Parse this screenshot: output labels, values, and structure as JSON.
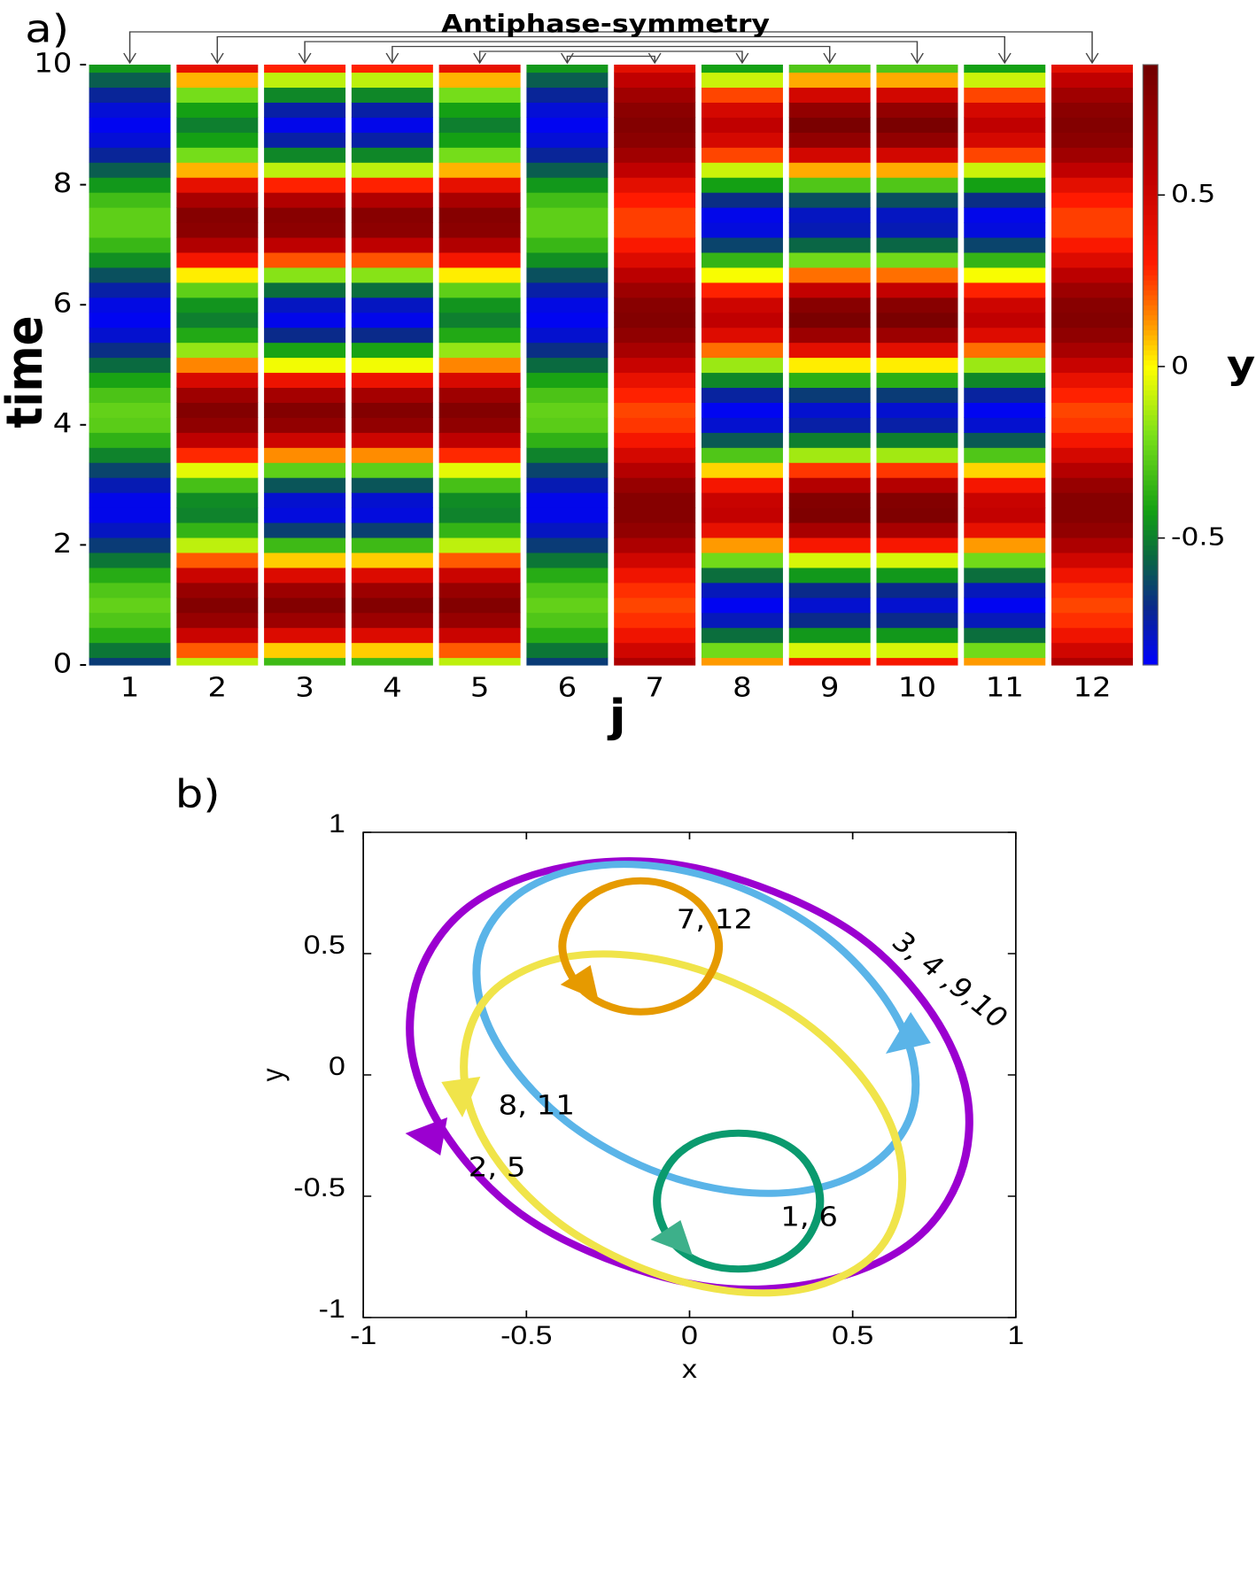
{
  "chart_data": [
    {
      "type": "heatmap",
      "panel": "a)",
      "title": "Antiphase-symmetry",
      "xlabel": "j",
      "ylabel": "time",
      "colorbar_label": "y",
      "categories": [
        1,
        2,
        3,
        4,
        5,
        6,
        7,
        8,
        9,
        10,
        11,
        12
      ],
      "times": [
        0,
        0.25,
        0.5,
        0.75,
        1,
        1.25,
        1.5,
        1.75,
        2,
        2.25,
        2.5,
        2.75,
        3,
        3.25,
        3.5,
        3.75,
        4,
        4.25,
        4.5,
        4.75,
        5,
        5.25,
        5.5,
        5.75,
        6,
        6.25,
        6.5,
        6.75,
        7,
        7.25,
        7.5,
        7.75,
        8,
        8.25,
        8.5,
        8.75,
        9,
        9.25,
        9.5,
        9.75,
        10
      ],
      "values": [
        [
          -0.66,
          -0.52,
          -0.38,
          -0.29,
          -0.25,
          -0.29,
          -0.38,
          -0.52,
          -0.66,
          -0.78,
          -0.84,
          -0.84,
          -0.76,
          -0.64,
          -0.49,
          -0.36,
          -0.27,
          -0.25,
          -0.3,
          -0.41,
          -0.55,
          -0.69,
          -0.8,
          -0.85,
          -0.83,
          -0.74,
          -0.61,
          -0.46,
          -0.34,
          -0.26,
          -0.26,
          -0.32,
          -0.44,
          -0.58,
          -0.72,
          -0.81,
          -0.85,
          -0.81,
          -0.72,
          -0.58,
          -0.44
        ],
        [
          -0.1,
          0.21,
          0.51,
          0.72,
          0.8,
          0.72,
          0.51,
          0.21,
          -0.1,
          -0.35,
          -0.49,
          -0.47,
          -0.31,
          -0.04,
          0.28,
          0.56,
          0.75,
          0.8,
          0.69,
          0.46,
          0.15,
          -0.16,
          -0.39,
          -0.5,
          -0.45,
          -0.26,
          0.02,
          0.34,
          0.61,
          0.77,
          0.79,
          0.65,
          0.4,
          0.09,
          -0.21,
          -0.42,
          -0.5,
          -0.42,
          -0.21,
          0.09,
          0.4
        ],
        [
          -0.33,
          0.06,
          0.44,
          0.7,
          0.8,
          0.7,
          0.44,
          0.06,
          -0.33,
          -0.65,
          -0.82,
          -0.8,
          -0.6,
          -0.26,
          0.14,
          0.5,
          0.74,
          0.8,
          0.66,
          0.37,
          -0.02,
          -0.41,
          -0.7,
          -0.84,
          -0.78,
          -0.54,
          -0.18,
          0.22,
          0.56,
          0.76,
          0.78,
          0.61,
          0.29,
          -0.1,
          -0.48,
          -0.74,
          -0.84,
          -0.74,
          -0.48,
          -0.1,
          0.29
        ],
        [
          -0.33,
          0.06,
          0.44,
          0.7,
          0.8,
          0.7,
          0.44,
          0.06,
          -0.33,
          -0.65,
          -0.82,
          -0.8,
          -0.6,
          -0.26,
          0.14,
          0.5,
          0.74,
          0.8,
          0.66,
          0.37,
          -0.02,
          -0.41,
          -0.7,
          -0.84,
          -0.78,
          -0.54,
          -0.18,
          0.22,
          0.56,
          0.76,
          0.78,
          0.61,
          0.29,
          -0.1,
          -0.48,
          -0.74,
          -0.84,
          -0.74,
          -0.48,
          -0.1,
          0.29
        ],
        [
          -0.1,
          0.21,
          0.51,
          0.72,
          0.8,
          0.72,
          0.51,
          0.21,
          -0.1,
          -0.35,
          -0.49,
          -0.47,
          -0.31,
          -0.04,
          0.28,
          0.56,
          0.75,
          0.8,
          0.69,
          0.46,
          0.15,
          -0.16,
          -0.39,
          -0.5,
          -0.45,
          -0.26,
          0.02,
          0.34,
          0.61,
          0.77,
          0.79,
          0.65,
          0.4,
          0.09,
          -0.21,
          -0.42,
          -0.5,
          -0.42,
          -0.21,
          0.09,
          0.4
        ],
        [
          -0.66,
          -0.52,
          -0.38,
          -0.29,
          -0.25,
          -0.29,
          -0.38,
          -0.52,
          -0.66,
          -0.78,
          -0.84,
          -0.84,
          -0.76,
          -0.64,
          -0.49,
          -0.36,
          -0.27,
          -0.25,
          -0.3,
          -0.41,
          -0.55,
          -0.69,
          -0.8,
          -0.85,
          -0.83,
          -0.74,
          -0.61,
          -0.46,
          -0.34,
          -0.26,
          -0.26,
          -0.32,
          -0.44,
          -0.58,
          -0.72,
          -0.81,
          -0.85,
          -0.81,
          -0.72,
          -0.58,
          -0.44
        ],
        [
          0.63,
          0.49,
          0.36,
          0.27,
          0.24,
          0.27,
          0.36,
          0.49,
          0.63,
          0.74,
          0.79,
          0.79,
          0.72,
          0.6,
          0.47,
          0.34,
          0.26,
          0.24,
          0.29,
          0.39,
          0.52,
          0.65,
          0.75,
          0.8,
          0.78,
          0.7,
          0.57,
          0.44,
          0.32,
          0.25,
          0.25,
          0.3,
          0.41,
          0.55,
          0.68,
          0.77,
          0.8,
          0.77,
          0.68,
          0.55,
          0.41
        ],
        [
          0.12,
          -0.22,
          -0.54,
          -0.77,
          -0.85,
          -0.77,
          -0.54,
          -0.22,
          0.12,
          0.39,
          0.54,
          0.52,
          0.34,
          0.05,
          -0.29,
          -0.59,
          -0.8,
          -0.85,
          -0.73,
          -0.48,
          -0.15,
          0.18,
          0.43,
          0.55,
          0.5,
          0.29,
          -0.01,
          -0.35,
          -0.64,
          -0.82,
          -0.84,
          -0.69,
          -0.42,
          -0.08,
          0.24,
          0.47,
          0.55,
          0.47,
          0.24,
          -0.08,
          -0.42
        ],
        [
          0.33,
          -0.06,
          -0.44,
          -0.7,
          -0.8,
          -0.7,
          -0.44,
          -0.06,
          0.33,
          0.65,
          0.82,
          0.8,
          0.6,
          0.26,
          -0.14,
          -0.5,
          -0.74,
          -0.8,
          -0.66,
          -0.37,
          0.02,
          0.41,
          0.7,
          0.84,
          0.78,
          0.54,
          0.18,
          -0.22,
          -0.56,
          -0.76,
          -0.78,
          -0.61,
          -0.29,
          0.1,
          0.48,
          0.74,
          0.84,
          0.74,
          0.48,
          0.1,
          -0.29
        ],
        [
          0.33,
          -0.06,
          -0.44,
          -0.7,
          -0.8,
          -0.7,
          -0.44,
          -0.06,
          0.33,
          0.65,
          0.82,
          0.8,
          0.6,
          0.26,
          -0.14,
          -0.5,
          -0.74,
          -0.8,
          -0.66,
          -0.37,
          0.02,
          0.41,
          0.7,
          0.84,
          0.78,
          0.54,
          0.18,
          -0.22,
          -0.56,
          -0.76,
          -0.78,
          -0.61,
          -0.29,
          0.1,
          0.48,
          0.74,
          0.84,
          0.74,
          0.48,
          0.1,
          -0.29
        ],
        [
          0.12,
          -0.22,
          -0.54,
          -0.77,
          -0.85,
          -0.77,
          -0.54,
          -0.22,
          0.12,
          0.39,
          0.54,
          0.52,
          0.34,
          0.05,
          -0.29,
          -0.59,
          -0.8,
          -0.85,
          -0.73,
          -0.48,
          -0.15,
          0.18,
          0.43,
          0.55,
          0.5,
          0.29,
          -0.01,
          -0.35,
          -0.64,
          -0.82,
          -0.84,
          -0.69,
          -0.42,
          -0.08,
          0.24,
          0.47,
          0.55,
          0.47,
          0.24,
          -0.08,
          -0.42
        ],
        [
          0.63,
          0.49,
          0.36,
          0.27,
          0.24,
          0.27,
          0.36,
          0.49,
          0.63,
          0.74,
          0.79,
          0.79,
          0.72,
          0.6,
          0.47,
          0.34,
          0.26,
          0.24,
          0.29,
          0.39,
          0.52,
          0.65,
          0.75,
          0.8,
          0.78,
          0.7,
          0.57,
          0.44,
          0.32,
          0.25,
          0.25,
          0.3,
          0.41,
          0.55,
          0.68,
          0.77,
          0.8,
          0.77,
          0.68,
          0.55,
          0.41
        ]
      ],
      "ylim": [
        0,
        10
      ],
      "yticks": [
        0,
        2,
        4,
        6,
        8,
        10
      ],
      "clim": [
        -0.87,
        0.88
      ],
      "cticks": [
        -0.5,
        0,
        0.5
      ],
      "colormap": [
        {
          "value": -0.87,
          "color": "#0000ff"
        },
        {
          "value": -0.7,
          "color": "#0a2a8a"
        },
        {
          "value": -0.55,
          "color": "#0a6a40"
        },
        {
          "value": -0.42,
          "color": "#14a014"
        },
        {
          "value": -0.2,
          "color": "#7ae01a"
        },
        {
          "value": 0,
          "color": "#ffff00"
        },
        {
          "value": 0.12,
          "color": "#ff9a00"
        },
        {
          "value": 0.3,
          "color": "#ff1a00"
        },
        {
          "value": 0.55,
          "color": "#c00000"
        },
        {
          "value": 0.88,
          "color": "#700000"
        }
      ]
    },
    {
      "type": "line",
      "panel": "b)",
      "xlabel": "x",
      "ylabel": "y",
      "xlim": [
        -1,
        1
      ],
      "ylim": [
        -1,
        1
      ],
      "xticks": [
        -1,
        -0.5,
        0,
        0.5,
        1
      ],
      "yticks": [
        -1,
        -0.5,
        0,
        0.5,
        1
      ],
      "series": [
        {
          "name": "3, 4 ,9,10",
          "color": "#9b00d0",
          "x": [
            0.85,
            0.74,
            0.52,
            0.21,
            -0.12,
            -0.44,
            -0.69,
            -0.83,
            -0.85,
            -0.74,
            -0.52,
            -0.21,
            0.12,
            0.44,
            0.69,
            0.83
          ],
          "y": [
            -0.08,
            0.26,
            0.57,
            0.78,
            0.88,
            0.84,
            0.68,
            0.41,
            0.08,
            -0.26,
            -0.57,
            -0.78,
            -0.88,
            -0.84,
            -0.68,
            -0.41
          ]
        },
        {
          "name": "2, 5",
          "color": "#5ab4e8",
          "x": [
            0.68,
            0.58,
            0.4,
            0.16,
            -0.1,
            -0.34,
            -0.53,
            -0.64,
            -0.64,
            -0.54,
            -0.36,
            -0.12,
            0.14,
            0.38,
            0.57,
            0.68
          ],
          "y": [
            0.09,
            0.35,
            0.59,
            0.77,
            0.86,
            0.85,
            0.74,
            0.54,
            0.29,
            0.03,
            -0.21,
            -0.39,
            -0.48,
            -0.47,
            -0.36,
            -0.16
          ]
        },
        {
          "name": "8, 11",
          "color": "#f0e44a",
          "x": [
            0.64,
            0.54,
            0.35,
            0.1,
            -0.16,
            -0.4,
            -0.59,
            -0.68,
            -0.68,
            -0.58,
            -0.39,
            -0.14,
            0.12,
            0.36,
            0.55,
            0.64
          ],
          "y": [
            -0.3,
            -0.03,
            0.22,
            0.4,
            0.49,
            0.48,
            0.36,
            0.16,
            -0.1,
            -0.37,
            -0.62,
            -0.8,
            -0.89,
            -0.88,
            -0.76,
            -0.56
          ]
        },
        {
          "name": "7, 12",
          "color": "#e69a00",
          "x": [
            0.09,
            0.07,
            0.02,
            -0.06,
            -0.15,
            -0.24,
            -0.32,
            -0.37,
            -0.39,
            -0.37,
            -0.32,
            -0.24,
            -0.15,
            -0.06,
            0.02,
            0.07
          ],
          "y": [
            0.53,
            0.63,
            0.72,
            0.78,
            0.8,
            0.78,
            0.72,
            0.63,
            0.53,
            0.43,
            0.34,
            0.28,
            0.26,
            0.28,
            0.34,
            0.43
          ]
        },
        {
          "name": "1, 6",
          "color": "#0a9a6e",
          "x": [
            0.4,
            0.38,
            0.33,
            0.25,
            0.15,
            0.05,
            -0.03,
            -0.08,
            -0.1,
            -0.08,
            -0.03,
            0.05,
            0.15,
            0.25,
            0.33,
            0.38
          ],
          "y": [
            -0.52,
            -0.41,
            -0.32,
            -0.26,
            -0.24,
            -0.26,
            -0.32,
            -0.41,
            -0.52,
            -0.63,
            -0.72,
            -0.78,
            -0.8,
            -0.78,
            -0.72,
            -0.63
          ]
        }
      ]
    }
  ]
}
